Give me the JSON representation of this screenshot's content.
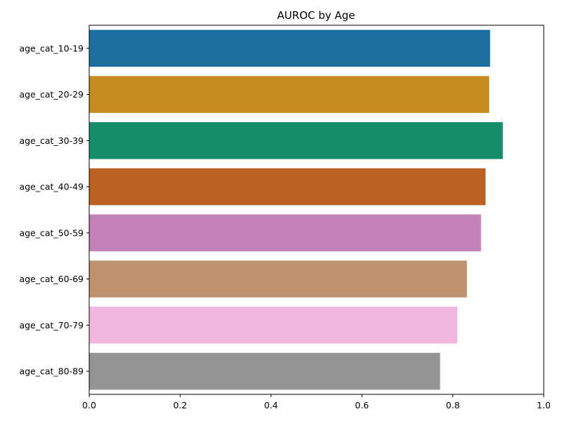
{
  "chart_data": {
    "type": "bar",
    "orientation": "horizontal",
    "title": "AUROC by Age",
    "xlabel": "",
    "ylabel": "",
    "xlim": [
      0,
      1
    ],
    "x_ticks": [
      "0.0",
      "0.2",
      "0.4",
      "0.6",
      "0.8",
      "1.0"
    ],
    "x_tick_values": [
      0,
      0.2,
      0.4,
      0.6,
      0.8,
      1.0
    ],
    "grid": false,
    "legend": "none",
    "categories": [
      "age_cat_10-19",
      "age_cat_20-29",
      "age_cat_30-39",
      "age_cat_40-49",
      "age_cat_50-59",
      "age_cat_60-69",
      "age_cat_70-79",
      "age_cat_80-89"
    ],
    "values": [
      0.882,
      0.88,
      0.91,
      0.872,
      0.862,
      0.831,
      0.81,
      0.772
    ],
    "colors": [
      "#1a6f9f",
      "#c4891f",
      "#168e6c",
      "#ba621f",
      "#c382b8",
      "#bf9370",
      "#f1b7df",
      "#959595"
    ]
  }
}
